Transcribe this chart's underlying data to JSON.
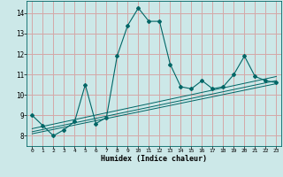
{
  "xlabel": "Humidex (Indice chaleur)",
  "background_color": "#cce8e8",
  "grid_color": "#d4a8a8",
  "line_color": "#006666",
  "xlim": [
    -0.5,
    23.5
  ],
  "ylim": [
    7.5,
    14.6
  ],
  "xticks": [
    0,
    1,
    2,
    3,
    4,
    5,
    6,
    7,
    8,
    9,
    10,
    11,
    12,
    13,
    14,
    15,
    16,
    17,
    18,
    19,
    20,
    21,
    22,
    23
  ],
  "yticks": [
    8,
    9,
    10,
    11,
    12,
    13,
    14
  ],
  "main_x": [
    0,
    1,
    2,
    3,
    4,
    5,
    6,
    7,
    8,
    9,
    10,
    11,
    12,
    13,
    14,
    15,
    16,
    17,
    18,
    19,
    20,
    21,
    22,
    23
  ],
  "main_y": [
    9.0,
    8.5,
    8.0,
    8.3,
    8.7,
    10.5,
    8.6,
    8.9,
    11.9,
    13.4,
    14.25,
    13.6,
    13.6,
    11.5,
    10.4,
    10.3,
    10.7,
    10.3,
    10.4,
    11.0,
    11.9,
    10.9,
    10.7,
    10.6
  ],
  "line1_x": [
    0,
    23
  ],
  "line1_y": [
    8.1,
    10.55
  ],
  "line2_x": [
    0,
    23
  ],
  "line2_y": [
    8.2,
    10.7
  ],
  "line3_x": [
    0,
    23
  ],
  "line3_y": [
    8.35,
    10.9
  ]
}
